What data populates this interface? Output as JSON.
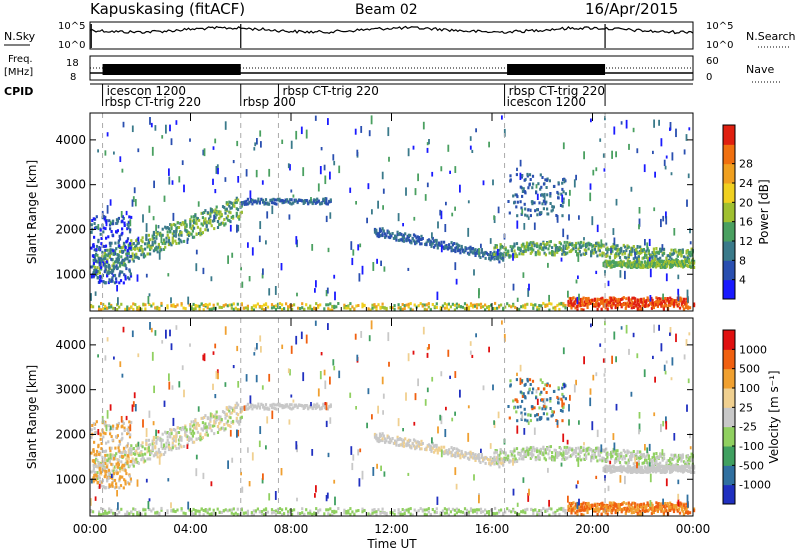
{
  "header": {
    "station": "Kapuskasing (fitACF)",
    "beam": "Beam 02",
    "date": "16/Apr/2015"
  },
  "noise_panel": {
    "left_label": "N.Sky",
    "right_label": "N.Search",
    "ticks_left": [
      "10^5",
      "10^0"
    ],
    "ticks_right": [
      "10^5",
      "10^0"
    ]
  },
  "freq_panel": {
    "left_label_1": "Freq.",
    "left_label_2": "[MHz]",
    "ticks_left": [
      "18",
      "8"
    ],
    "right_label": "Nave",
    "ticks_right": [
      "60",
      "0"
    ]
  },
  "cpid": {
    "label": "CPID",
    "segments": [
      {
        "top": "icescon 1200",
        "bottom": "rbsp CT-trig 220",
        "start_h": 0.5,
        "end_h": 6.0
      },
      {
        "top": "",
        "bottom": "rbsp 200",
        "start_h": 6.0,
        "end_h": 7.5
      },
      {
        "top": "rbsp CT-trig 220",
        "bottom": "",
        "start_h": 7.5,
        "end_h": 16.5
      },
      {
        "top": "rbsp CT-trig 220",
        "bottom": "icescon 1200",
        "start_h": 16.5,
        "end_h": 20.5
      }
    ]
  },
  "chart_data": [
    {
      "type": "heatmap",
      "name": "power",
      "ylabel": "Slant Range [km]",
      "xlim_hours": [
        0,
        24
      ],
      "ylim": [
        180,
        4600
      ],
      "yticks": [
        "1000",
        "2000",
        "3000",
        "4000"
      ],
      "colorbar": {
        "label": "Power [dB]",
        "ticks": [
          "4",
          "8",
          "12",
          "16",
          "20",
          "24",
          "28"
        ],
        "colors": [
          "#1a1aff",
          "#2a4fb0",
          "#3a7a8a",
          "#4aa060",
          "#a0c030",
          "#f0d020",
          "#f0a020",
          "#f07010",
          "#e02010"
        ]
      }
    },
    {
      "type": "heatmap",
      "name": "velocity",
      "ylabel": "Slant Range [km]",
      "xlim_hours": [
        0,
        24
      ],
      "ylim": [
        180,
        4600
      ],
      "yticks": [
        "1000",
        "2000",
        "3000",
        "4000"
      ],
      "colorbar": {
        "label": "Velocity [m s⁻¹]",
        "ticks": [
          "1000",
          "500",
          "100",
          "25",
          "-25",
          "-100",
          "-500",
          "-1000"
        ],
        "colors": [
          "#2030c0",
          "#3070a0",
          "#40a060",
          "#90d060",
          "#c8c8c8",
          "#f0d090",
          "#f0a030",
          "#f06010",
          "#e01010"
        ]
      },
      "xlabel": "Time UT",
      "xticks": [
        "00:00",
        "04:00",
        "08:00",
        "12:00",
        "16:00",
        "20:00",
        "00:00"
      ]
    }
  ],
  "colors": {
    "dashed_lines": "#aaaaaa",
    "ground_scatter_grey": "#b8b8b8"
  }
}
